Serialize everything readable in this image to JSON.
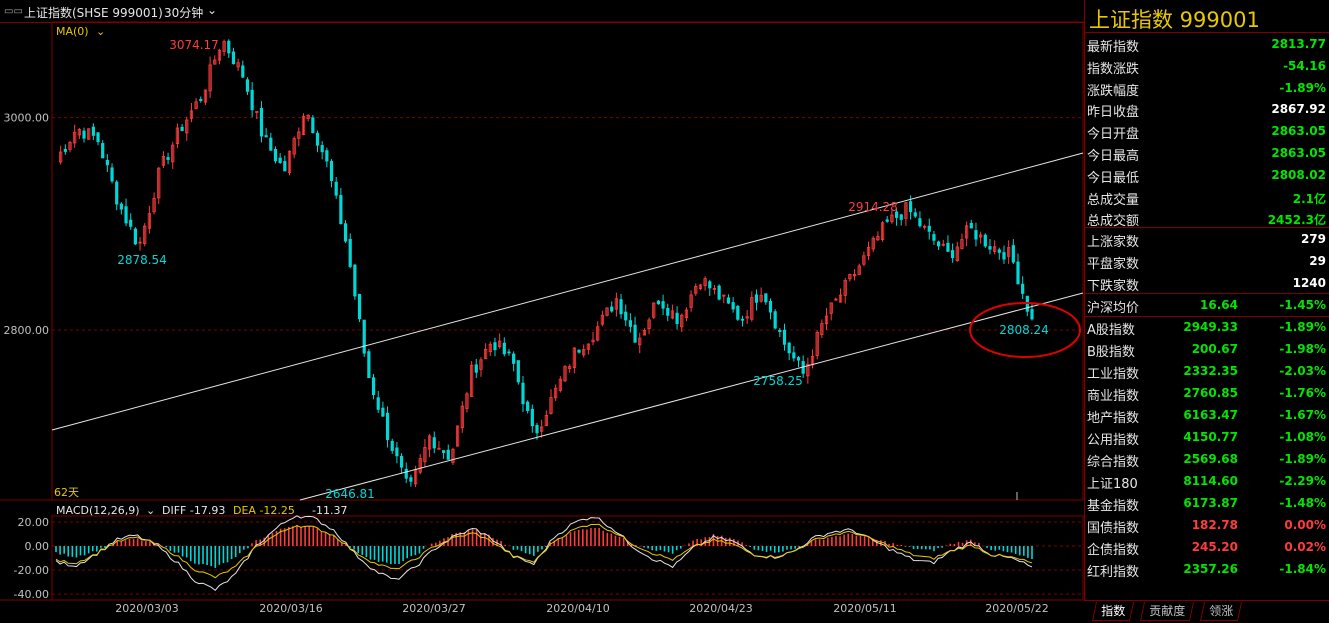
{
  "window": {
    "title": "上证指数(SHSE 999001)",
    "period": "30分钟",
    "menu_icon": "menu-icon",
    "chevron_icon": "chevron-down-icon"
  },
  "main_chart": {
    "ma_label": "MA(0)",
    "days_label": "62天",
    "annotations": {
      "high": "3074.17",
      "low_left": "2878.54",
      "low_mid": "2646.81",
      "peak_right": "2914.28",
      "trough_right": "2758.25",
      "last_low": "2808.24"
    },
    "axis_labels": [
      "3000.00",
      "2800.00"
    ]
  },
  "macd": {
    "label": "MACD(12,26,9)",
    "diff": "DIFF -17.93",
    "dea": "DEA -12.25",
    "macd": "-11.37",
    "axis_labels": [
      "20.00",
      "0.00",
      "-20.00",
      "-40.00"
    ]
  },
  "x_axis": [
    "2020/03/03",
    "2020/03/16",
    "2020/03/27",
    "2020/04/10",
    "2020/04/23",
    "2020/05/11",
    "2020/05/22"
  ],
  "chart_data": [
    {
      "type": "candlestick",
      "title": "上证指数(SHSE 999001)",
      "interval": "30分钟",
      "y_ticks": [
        3000,
        2800
      ],
      "x_ticks": [
        "2020/03/03",
        "2020/03/16",
        "2020/03/27",
        "2020/04/10",
        "2020/04/23",
        "2020/05/11",
        "2020/05/22"
      ],
      "ylim": [
        2640,
        3090
      ],
      "key_points": [
        {
          "x": "2020/02/26",
          "y": 2878.54
        },
        {
          "x": "2020/03/05",
          "y": 3074.17
        },
        {
          "x": "2020/03/19",
          "y": 2646.81
        },
        {
          "x": "2020/05/08",
          "y": 2914.28
        },
        {
          "x": "2020/04/29",
          "y": 2758.25
        },
        {
          "x": "2020/05/22",
          "y": 2808.24
        }
      ],
      "path": [
        2960,
        2990,
        2980,
        2920,
        2878.54,
        2950,
        2990,
        3020,
        3074.17,
        3040,
        2980,
        2950,
        3010,
        2960,
        2880,
        2760,
        2700,
        2646.81,
        2700,
        2680,
        2760,
        2790,
        2770,
        2700,
        2740,
        2780,
        2800,
        2830,
        2790,
        2830,
        2810,
        2850,
        2830,
        2810,
        2840,
        2790,
        2758.25,
        2810,
        2840,
        2870,
        2900,
        2914.28,
        2890,
        2870,
        2895,
        2880,
        2870,
        2808.24
      ],
      "trend_lines": [
        "upper channel line",
        "lower channel line"
      ]
    },
    {
      "type": "bar",
      "title": "MACD(12,26,9)",
      "ylim": [
        -45,
        25
      ],
      "y_ticks": [
        20,
        0,
        -20,
        -40
      ],
      "series": [
        {
          "name": "DIFF",
          "last": -17.93
        },
        {
          "name": "DEA",
          "last": -12.25
        },
        {
          "name": "MACD",
          "last": -11.37
        }
      ],
      "bars": [
        -6,
        -9,
        -4,
        3,
        6,
        2,
        -5,
        -14,
        -18,
        -10,
        4,
        12,
        18,
        15,
        8,
        -4,
        -12,
        -16,
        -8,
        3,
        10,
        14,
        7,
        -3,
        -8,
        5,
        12,
        16,
        10,
        2,
        -3,
        -6,
        4,
        9,
        6,
        -2,
        -5,
        -3,
        4,
        8,
        10,
        6,
        2,
        -2,
        -4,
        2,
        5,
        -3,
        -6,
        -11
      ]
    }
  ],
  "quote_panel": {
    "title": "上证指数  999001",
    "rows": [
      {
        "label": "最新指数",
        "value": "2813.77",
        "color": "green"
      },
      {
        "label": "指数涨跌",
        "value": "-54.16",
        "color": "green"
      },
      {
        "label": "涨跌幅度",
        "value": "-1.89%",
        "color": "green"
      },
      {
        "label": "昨日收盘",
        "value": "2867.92",
        "color": "white"
      },
      {
        "label": "今日开盘",
        "value": "2863.05",
        "color": "green"
      },
      {
        "label": "今日最高",
        "value": "2863.05",
        "color": "green"
      },
      {
        "label": "今日最低",
        "value": "2808.02",
        "color": "green"
      },
      {
        "label": "总成交量",
        "value": "2.1亿",
        "color": "green"
      },
      {
        "label": "总成交额",
        "value": "2452.3亿",
        "color": "green"
      }
    ],
    "breadth": [
      {
        "label": "上涨家数",
        "value": "279",
        "color": "white"
      },
      {
        "label": "平盘家数",
        "value": "29",
        "color": "white"
      },
      {
        "label": "下跌家数",
        "value": "1240",
        "color": "white"
      }
    ],
    "avg": {
      "label": "沪深均价",
      "value": "16.64",
      "pct": "-1.45%"
    },
    "indices": [
      {
        "label": "A股指数",
        "value": "2949.33",
        "pct": "-1.89%",
        "color": "green"
      },
      {
        "label": "B股指数",
        "value": "200.67",
        "pct": "-1.98%",
        "color": "green"
      },
      {
        "label": "工业指数",
        "value": "2332.35",
        "pct": "-2.03%",
        "color": "green"
      },
      {
        "label": "商业指数",
        "value": "2760.85",
        "pct": "-1.76%",
        "color": "green"
      },
      {
        "label": "地产指数",
        "value": "6163.47",
        "pct": "-1.67%",
        "color": "green"
      },
      {
        "label": "公用指数",
        "value": "4150.77",
        "pct": "-1.08%",
        "color": "green"
      },
      {
        "label": "综合指数",
        "value": "2569.68",
        "pct": "-1.89%",
        "color": "green"
      },
      {
        "label": "上证180",
        "value": "8114.60",
        "pct": "-2.29%",
        "color": "green"
      },
      {
        "label": "基金指数",
        "value": "6173.87",
        "pct": "-1.48%",
        "color": "green"
      },
      {
        "label": "国债指数",
        "value": "182.78",
        "pct": "0.00%",
        "color": "red"
      },
      {
        "label": "企债指数",
        "value": "245.20",
        "pct": "0.02%",
        "color": "red"
      },
      {
        "label": "红利指数",
        "value": "2357.26",
        "pct": "-1.84%",
        "color": "green"
      }
    ],
    "tabs": [
      "指数",
      "贡献度",
      "领涨"
    ]
  },
  "colors": {
    "up": "#ff3c3c",
    "down": "#00d8d8",
    "grid": "#800000",
    "highlight_circle": "#e00000",
    "title_yellow": "#e8c800"
  }
}
